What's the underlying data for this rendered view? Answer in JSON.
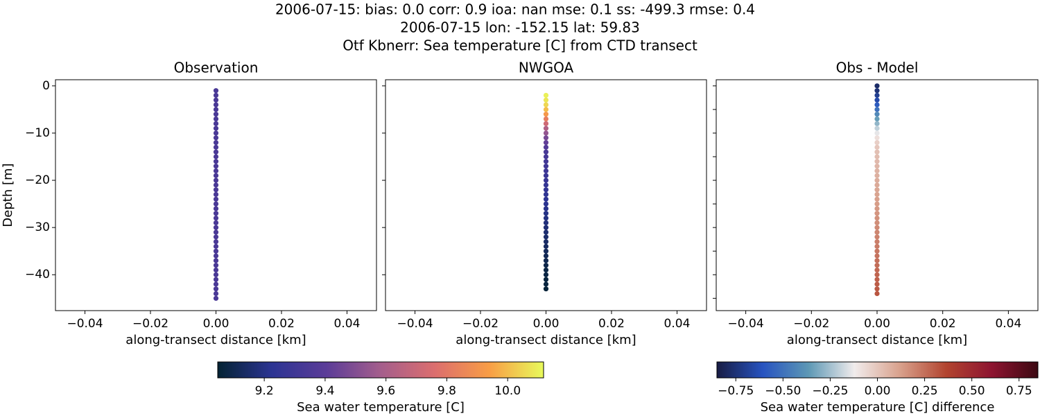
{
  "suptitle": [
    "2006-07-15: bias: 0.0  corr: 0.9  ioa: nan  mse: 0.1  ss: -499.3  rmse: 0.4",
    "2006-07-15 lon: -152.15 lat: 59.83",
    "Otf Kbnerr: Sea temperature [C] from CTD transect"
  ],
  "chart_data": [
    {
      "type": "scatter",
      "title": "Observation",
      "xlabel": "along-transect distance [km]",
      "ylabel": "Depth [m]",
      "show_ytick_labels": true,
      "xlim": [
        -0.049,
        0.049
      ],
      "ylim": [
        -47.6,
        1.3
      ],
      "xticks": [
        {
          "value": -0.04,
          "label": "−0.04"
        },
        {
          "value": -0.02,
          "label": "−0.02"
        },
        {
          "value": 0,
          "label": "0.00"
        },
        0.02,
        0.04
      ],
      "yticks": [
        0,
        {
          "value": -10,
          "label": "−10"
        },
        {
          "value": -20,
          "label": "−20"
        },
        {
          "value": -30,
          "label": "−30"
        },
        {
          "value": -40,
          "label": "−40"
        }
      ],
      "clim": [
        9.047,
        10.118
      ],
      "colormap": [
        "#042333",
        "#2c3493",
        "#5b3c98",
        "#a45e8c",
        "#dc6e6e",
        "#f89d45",
        "#e8fa5b"
      ],
      "x": [
        0,
        0,
        0,
        0,
        0,
        0,
        0,
        0,
        0,
        0,
        0,
        0,
        0,
        0,
        0,
        0,
        0,
        0,
        0,
        0,
        0,
        0,
        0,
        0,
        0,
        0,
        0,
        0,
        0,
        0,
        0,
        0,
        0,
        0,
        0,
        0,
        0,
        0,
        0,
        0,
        0,
        0,
        0,
        0,
        0
      ],
      "y": [
        -1,
        -2,
        -3,
        -4,
        -5,
        -6,
        -7,
        -8,
        -9,
        -10,
        -11,
        -12,
        -13,
        -14,
        -15,
        -16,
        -17,
        -18,
        -19,
        -20,
        -21,
        -22,
        -23,
        -24,
        -25,
        -26,
        -27,
        -28,
        -29,
        -30,
        -31,
        -32,
        -33,
        -34,
        -35,
        -36,
        -37,
        -38,
        -39,
        -40,
        -41,
        -42,
        -43,
        -44,
        -45
      ],
      "c": [
        9.34,
        9.34,
        9.34,
        9.34,
        9.34,
        9.34,
        9.34,
        9.34,
        9.34,
        9.34,
        9.34,
        9.34,
        9.34,
        9.34,
        9.34,
        9.34,
        9.34,
        9.34,
        9.34,
        9.34,
        9.34,
        9.34,
        9.34,
        9.34,
        9.34,
        9.34,
        9.34,
        9.34,
        9.34,
        9.34,
        9.34,
        9.34,
        9.34,
        9.34,
        9.34,
        9.34,
        9.34,
        9.34,
        9.34,
        9.34,
        9.34,
        9.34,
        9.34,
        9.34,
        9.34
      ]
    },
    {
      "type": "scatter",
      "title": "NWGOA",
      "xlabel": "along-transect distance [km]",
      "show_ytick_labels": false,
      "xlim": [
        -0.049,
        0.049
      ],
      "ylim": [
        -47.6,
        1.3
      ],
      "xticks": [
        {
          "value": -0.04,
          "label": "−0.04"
        },
        {
          "value": -0.02,
          "label": "−0.02"
        },
        {
          "value": 0,
          "label": "0.00"
        },
        0.02,
        0.04
      ],
      "yticks": [
        0,
        -10,
        -20,
        -30,
        -40
      ],
      "clim": [
        9.047,
        10.118
      ],
      "colormap": [
        "#042333",
        "#2c3493",
        "#5b3c98",
        "#a45e8c",
        "#dc6e6e",
        "#f89d45",
        "#e8fa5b"
      ],
      "x": [
        0,
        0,
        0,
        0,
        0,
        0,
        0,
        0,
        0,
        0,
        0,
        0,
        0,
        0,
        0,
        0,
        0,
        0,
        0,
        0,
        0,
        0,
        0,
        0,
        0,
        0,
        0,
        0,
        0,
        0,
        0,
        0,
        0,
        0,
        0,
        0,
        0,
        0,
        0,
        0,
        0,
        0
      ],
      "y": [
        -2,
        -3,
        -4,
        -5,
        -6,
        -7,
        -8,
        -9,
        -10,
        -11,
        -12,
        -13,
        -14,
        -15,
        -16,
        -17,
        -18,
        -19,
        -20,
        -21,
        -22,
        -23,
        -24,
        -25,
        -26,
        -27,
        -28,
        -29,
        -30,
        -31,
        -32,
        -33,
        -34,
        -35,
        -36,
        -37,
        -38,
        -39,
        -40,
        -41,
        -42,
        -43
      ],
      "c": [
        10.1,
        10.08,
        10.05,
        10.0,
        9.92,
        9.82,
        9.72,
        9.62,
        9.54,
        9.47,
        9.42,
        9.37,
        9.33,
        9.32,
        9.31,
        9.3,
        9.29,
        9.28,
        9.27,
        9.26,
        9.25,
        9.24,
        9.23,
        9.22,
        9.21,
        9.2,
        9.19,
        9.18,
        9.17,
        9.16,
        9.15,
        9.14,
        9.13,
        9.12,
        9.11,
        9.1,
        9.09,
        9.08,
        9.08,
        9.07,
        9.07,
        9.06
      ]
    },
    {
      "type": "scatter",
      "title": "Obs - Model",
      "xlabel": "along-transect distance [km]",
      "show_ytick_labels": false,
      "xlim": [
        -0.049,
        0.049
      ],
      "ylim": [
        -47.6,
        1.3
      ],
      "xticks": [
        {
          "value": -0.04,
          "label": "−0.04"
        },
        {
          "value": -0.02,
          "label": "−0.02"
        },
        {
          "value": 0,
          "label": "0.00"
        },
        0.02,
        0.04
      ],
      "yticks": [
        0,
        -5,
        -10,
        -15,
        -20,
        -25,
        -30,
        -35,
        -40,
        -45
      ],
      "clim": [
        -0.85,
        0.85
      ],
      "colormap": [
        "#181c43",
        "#2753c0",
        "#5d98b5",
        "#f1ecec",
        "#d8a08b",
        "#b2442f",
        "#8d1430",
        "#3c0912"
      ],
      "x": [
        0,
        0,
        0,
        0,
        0,
        0,
        0,
        0,
        0,
        0,
        0,
        0,
        0,
        0,
        0,
        0,
        0,
        0,
        0,
        0,
        0,
        0,
        0,
        0,
        0,
        0,
        0,
        0,
        0,
        0,
        0,
        0,
        0,
        0,
        0,
        0,
        0,
        0,
        0,
        0,
        0,
        0,
        0,
        0,
        0
      ],
      "y": [
        0,
        -1,
        -2,
        -3,
        -4,
        -5,
        -6,
        -7,
        -8,
        -9,
        -10,
        -11,
        -12,
        -13,
        -14,
        -15,
        -16,
        -17,
        -18,
        -19,
        -20,
        -21,
        -22,
        -23,
        -24,
        -25,
        -26,
        -27,
        -28,
        -29,
        -30,
        -31,
        -32,
        -33,
        -34,
        -35,
        -36,
        -37,
        -38,
        -39,
        -40,
        -41,
        -42,
        -43,
        -44
      ],
      "c": [
        -0.78,
        -0.75,
        -0.7,
        -0.65,
        -0.58,
        -0.5,
        -0.42,
        -0.35,
        -0.28,
        -0.2,
        -0.14,
        -0.08,
        -0.03,
        0.0,
        0.02,
        0.03,
        0.04,
        0.05,
        0.06,
        0.07,
        0.08,
        0.09,
        0.1,
        0.11,
        0.12,
        0.13,
        0.14,
        0.15,
        0.16,
        0.17,
        0.18,
        0.19,
        0.2,
        0.21,
        0.22,
        0.23,
        0.24,
        0.25,
        0.26,
        0.27,
        0.28,
        0.29,
        0.3,
        0.31,
        0.32
      ]
    },
    {
      "type": "colorbar",
      "label": "Sea water temperature [C]",
      "clim": [
        9.047,
        10.118
      ],
      "colormap": [
        "#042333",
        "#2c3493",
        "#5b3c98",
        "#a45e8c",
        "#dc6e6e",
        "#f89d45",
        "#e8fa5b"
      ],
      "ticks": [
        9.2,
        9.4,
        9.6,
        9.8,
        {
          "value": 10,
          "label": "10.0"
        }
      ]
    },
    {
      "type": "colorbar",
      "label": "Sea water temperature [C] difference",
      "clim": [
        -0.85,
        0.85
      ],
      "colormap": [
        "#181c43",
        "#2753c0",
        "#5d98b5",
        "#f1ecec",
        "#d8a08b",
        "#b2442f",
        "#8d1430",
        "#3c0912"
      ],
      "ticks": [
        {
          "value": -0.75,
          "label": "−0.75"
        },
        {
          "value": -0.5,
          "label": "−0.50"
        },
        {
          "value": -0.25,
          "label": "−0.25"
        },
        {
          "value": 0,
          "label": "0.00"
        },
        0.25,
        {
          "value": 0.5,
          "label": "0.50"
        },
        0.75
      ]
    }
  ]
}
